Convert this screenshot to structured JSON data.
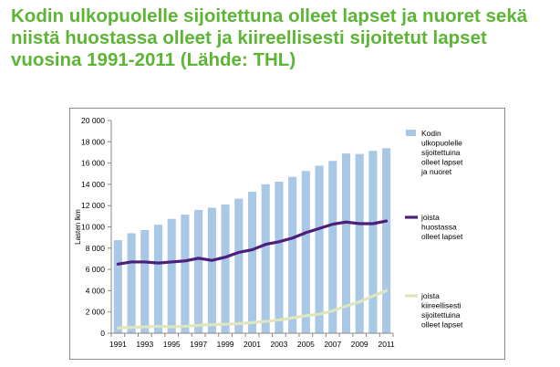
{
  "title": "Kodin ulkopuolelle sijoitettuna olleet lapset ja nuoret sekä niistä huostassa olleet ja kiireellisesti sijoitetut lapset vuosina 1991-2011 (Lähde: THL)",
  "colors": {
    "title": "#5cb534",
    "bars": "#a9c8e6",
    "line_huostassa": "#4b1f7a",
    "line_kiireelliset": "#dde6bc"
  },
  "chart_data": {
    "type": "bar",
    "ylabel": "Lasten lkm",
    "ylim": [
      0,
      20000
    ],
    "yticks": [
      0,
      2000,
      4000,
      6000,
      8000,
      10000,
      12000,
      14000,
      16000,
      18000,
      20000
    ],
    "ytick_labels": [
      "0",
      "2 000",
      "4 000",
      "6 000",
      "8 000",
      "10 000",
      "12 000",
      "14 000",
      "16 000",
      "18 000",
      "20 000"
    ],
    "categories": [
      1991,
      1992,
      1993,
      1994,
      1995,
      1996,
      1997,
      1998,
      1999,
      2000,
      2001,
      2002,
      2003,
      2004,
      2005,
      2006,
      2007,
      2008,
      2009,
      2010,
      2011
    ],
    "xtick_labels": [
      "1991",
      "1993",
      "1995",
      "1997",
      "1999",
      "2001",
      "2003",
      "2005",
      "2007",
      "2009",
      "2011"
    ],
    "grid": false,
    "legend_position": "right",
    "series": [
      {
        "name": "Kodin ulkopuolelle sijoitettuina olleet lapset ja nuoret",
        "legend_lines": [
          "Kodin",
          "ulkopuolelle",
          "sijoitettuina",
          "olleet lapset",
          "ja nuoret"
        ],
        "kind": "bar",
        "values": [
          8750,
          9400,
          9700,
          10200,
          10750,
          11150,
          11600,
          11800,
          12100,
          12650,
          13300,
          14000,
          14250,
          14700,
          15250,
          15750,
          16200,
          16900,
          16850,
          17150,
          17400
        ]
      },
      {
        "name": "joista huostassa olleet lapset",
        "legend_lines": [
          "joista",
          "huostassa",
          "olleet lapset"
        ],
        "kind": "line",
        "values": [
          6500,
          6700,
          6700,
          6600,
          6700,
          6800,
          7050,
          6850,
          7150,
          7600,
          7850,
          8350,
          8600,
          8950,
          9450,
          9850,
          10250,
          10450,
          10300,
          10300,
          10550
        ]
      },
      {
        "name": "joista kiireellisesti sijoitetut lapset",
        "legend_lines": [
          "joista",
          "kiireellisesti",
          "sijoitettuina",
          "olleet lapset"
        ],
        "kind": "line",
        "values": [
          500,
          550,
          600,
          650,
          600,
          650,
          750,
          800,
          850,
          900,
          1000,
          1100,
          1250,
          1450,
          1650,
          1800,
          2100,
          2550,
          2950,
          3500,
          4000
        ]
      }
    ]
  }
}
